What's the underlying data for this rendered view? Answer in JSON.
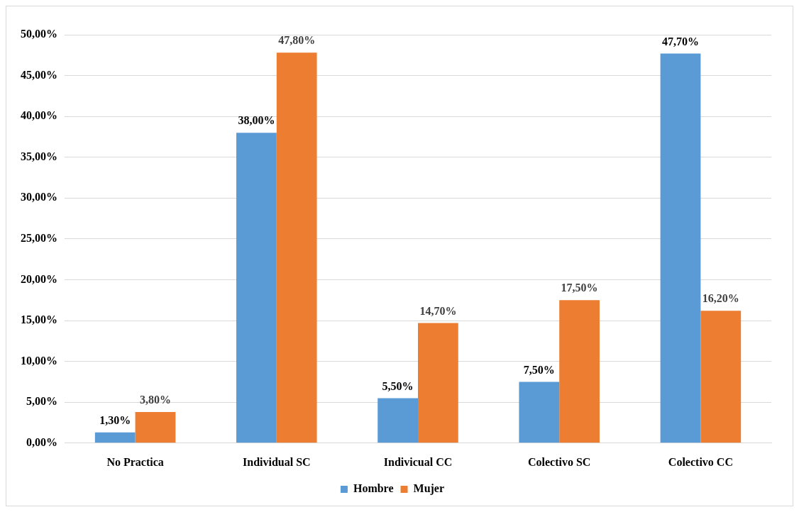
{
  "chart_data": {
    "type": "bar",
    "categories": [
      "No Practica",
      "Individual SC",
      "Indivicual CC",
      "Colectivo SC",
      "Colectivo CC"
    ],
    "series": [
      {
        "name": "Hombre",
        "color": "#5b9bd5",
        "values": [
          1.3,
          38,
          5.5,
          7.5,
          47.7
        ],
        "value_labels": [
          "1,30%",
          "38,00%",
          "5,50%",
          "7,50%",
          "47,70%"
        ]
      },
      {
        "name": "Mujer",
        "color": "#ed7d31",
        "values": [
          3.8,
          47.8,
          14.7,
          17.5,
          16.2
        ],
        "value_labels": [
          "3,80%",
          "47,80%",
          "14,70%",
          "17,50%",
          "16,20%"
        ]
      }
    ],
    "ylim": [
      0,
      50
    ],
    "yticks": [
      {
        "value": 0,
        "label": "0,00%"
      },
      {
        "value": 5,
        "label": "5,00%"
      },
      {
        "value": 10,
        "label": "10,00%"
      },
      {
        "value": 15,
        "label": "15,00%"
      },
      {
        "value": 20,
        "label": "20,00%"
      },
      {
        "value": 25,
        "label": "25,00%"
      },
      {
        "value": 30,
        "label": "30,00%"
      },
      {
        "value": 35,
        "label": "35,00%"
      },
      {
        "value": 40,
        "label": "40,00%"
      },
      {
        "value": 45,
        "label": "45,00%"
      },
      {
        "value": 50,
        "label": "50,00%"
      }
    ],
    "grid": "y",
    "legend": "bottom"
  }
}
